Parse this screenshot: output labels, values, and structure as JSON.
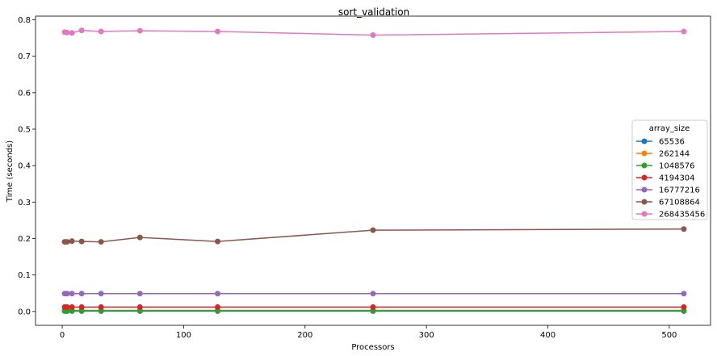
{
  "chart_data": {
    "type": "line",
    "title": "sort_validation",
    "xlabel": "Processors",
    "ylabel": "Time (seconds)",
    "xlim": [
      -22,
      534
    ],
    "ylim": [
      -0.038,
      0.81
    ],
    "xticks": [
      0,
      100,
      200,
      300,
      400,
      500
    ],
    "yticks": [
      0.0,
      0.1,
      0.2,
      0.3,
      0.4,
      0.5,
      0.6,
      0.7,
      0.8
    ],
    "x": [
      2,
      4,
      8,
      16,
      32,
      64,
      128,
      256,
      512
    ],
    "grid": false,
    "legend": {
      "title": "array_size",
      "placement": "center-right"
    },
    "series": [
      {
        "name": "65536",
        "color": "#1f77b4",
        "values": [
          0.001,
          0.001,
          0.001,
          0.001,
          0.001,
          0.001,
          0.001,
          0.001,
          0.001
        ]
      },
      {
        "name": "262144",
        "color": "#ff7f0e",
        "values": [
          0.003,
          0.003,
          0.003,
          0.003,
          0.003,
          0.003,
          0.003,
          0.003,
          0.003
        ]
      },
      {
        "name": "1048576",
        "color": "#2ca02c",
        "values": [
          0.002,
          0.002,
          0.002,
          0.002,
          0.002,
          0.002,
          0.002,
          0.002,
          0.002
        ]
      },
      {
        "name": "4194304",
        "color": "#d62728",
        "values": [
          0.012,
          0.012,
          0.012,
          0.012,
          0.012,
          0.012,
          0.012,
          0.012,
          0.012
        ]
      },
      {
        "name": "16777216",
        "color": "#9467bd",
        "values": [
          0.049,
          0.049,
          0.049,
          0.049,
          0.049,
          0.049,
          0.049,
          0.049,
          0.049
        ]
      },
      {
        "name": "67108864",
        "color": "#8c564b",
        "values": [
          0.191,
          0.191,
          0.193,
          0.192,
          0.191,
          0.203,
          0.192,
          0.223,
          0.226
        ]
      },
      {
        "name": "268435456",
        "color": "#e377c2",
        "values": [
          0.766,
          0.765,
          0.764,
          0.771,
          0.768,
          0.77,
          0.768,
          0.758,
          0.768
        ]
      }
    ]
  }
}
